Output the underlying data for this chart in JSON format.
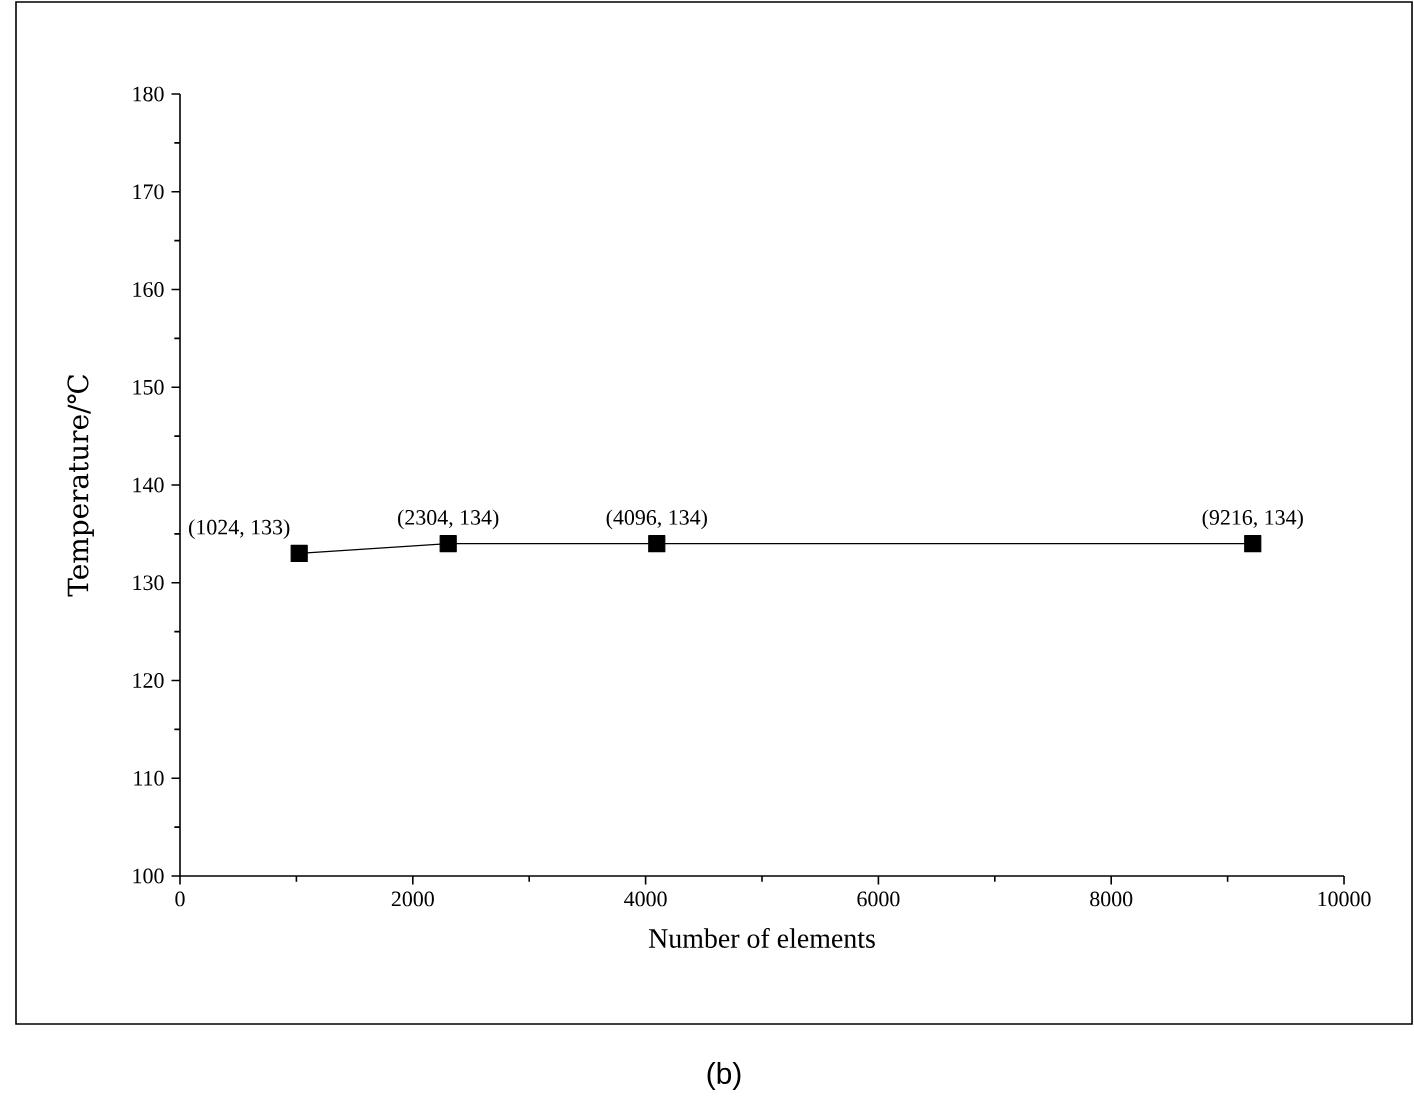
{
  "chart_data": {
    "type": "line",
    "xlabel": "Number of elements",
    "ylabel": "Temperature/℃",
    "x": [
      1024,
      2304,
      4096,
      9216
    ],
    "series": [
      {
        "color": "#000000",
        "values": [
          133,
          134,
          134,
          134
        ]
      }
    ],
    "xlim": [
      0,
      10000
    ],
    "xticks": [
      0,
      2000,
      4000,
      6000,
      8000,
      10000
    ],
    "ylim": [
      100,
      180
    ],
    "yticks": [
      100,
      110,
      120,
      130,
      140,
      150,
      160,
      170,
      180
    ],
    "marker": "square",
    "line_style": "solid",
    "grid": false,
    "annotations": [
      {
        "text": "(1024, 133)",
        "x": 1024,
        "y": 133
      },
      {
        "text": "(2304, 134)",
        "x": 2304,
        "y": 134
      },
      {
        "text": "(4096, 134)",
        "x": 4096,
        "y": 134
      },
      {
        "text": "(9216, 134)",
        "x": 9216,
        "y": 134
      },
      "(b)"
    ]
  }
}
